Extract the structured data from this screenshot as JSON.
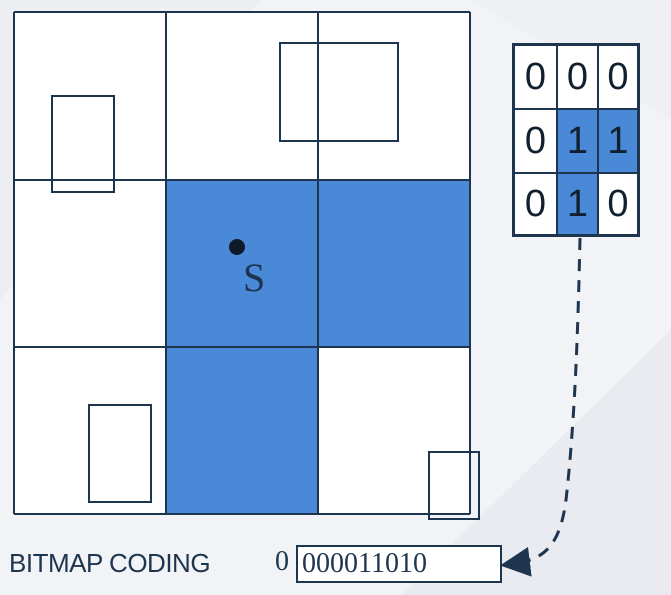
{
  "grid": {
    "cells": [
      [
        0,
        0,
        0
      ],
      [
        0,
        1,
        1
      ],
      [
        0,
        1,
        0
      ]
    ]
  },
  "point": {
    "label": "S"
  },
  "matrix": {
    "rows": [
      [
        "0",
        "0",
        "0"
      ],
      [
        "0",
        "1",
        "1"
      ],
      [
        "0",
        "1",
        "0"
      ]
    ]
  },
  "caption": {
    "label": "BITMAP CODING",
    "prefix": "0",
    "code": "000011010"
  },
  "colors": {
    "filled": "#4a89d8",
    "lines": "#1e3550",
    "background": "#f2f3f6"
  },
  "icons": {
    "arrow": "dashed-curved-arrow-icon"
  }
}
